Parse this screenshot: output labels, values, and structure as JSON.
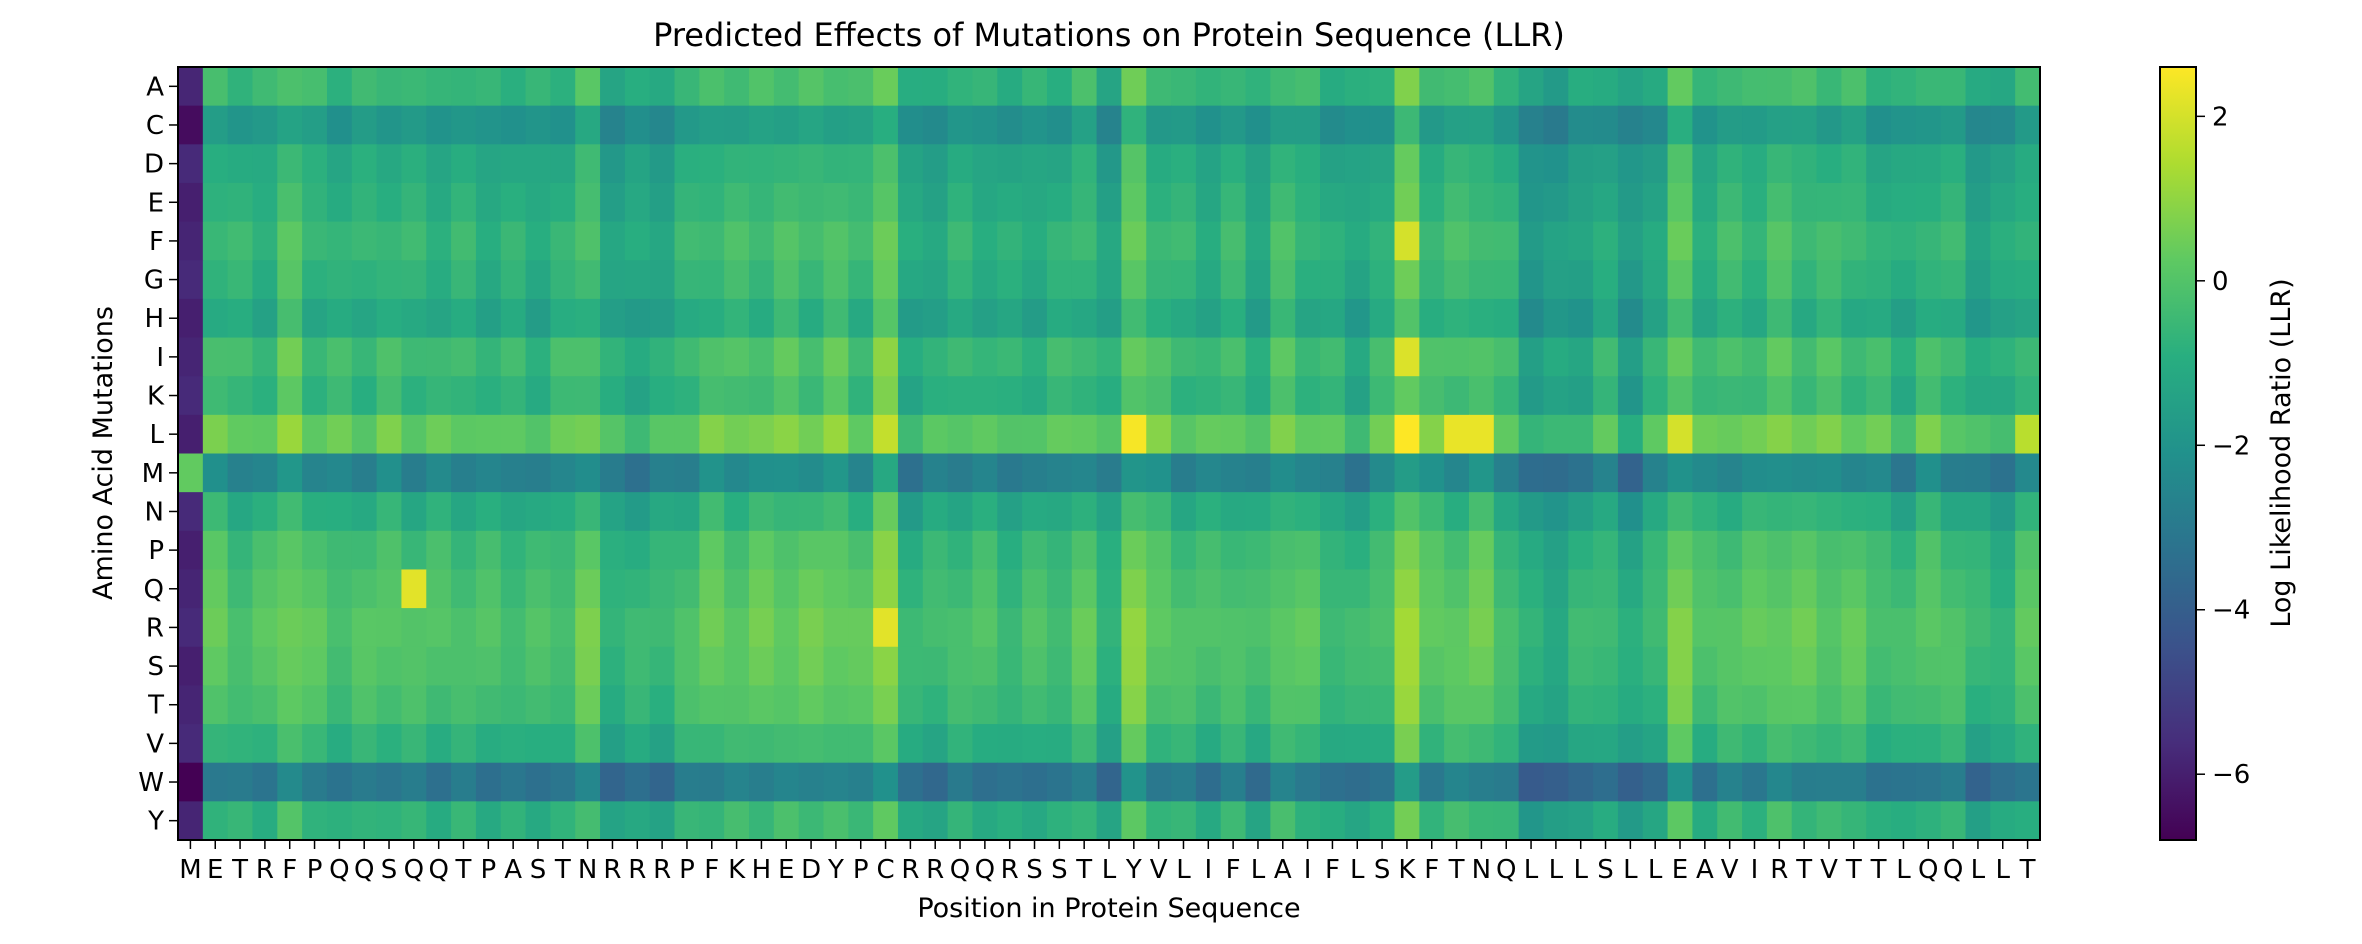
{
  "chart_data": {
    "type": "heatmap",
    "title": "Predicted Effects of Mutations on Protein Sequence (LLR)",
    "xlabel": "Position in Protein Sequence",
    "ylabel": "Amino Acid Mutations",
    "colorbar_label": "Log Likelihood Ratio (LLR)",
    "colormap": "viridis",
    "color_range": [
      -6.8,
      2.6
    ],
    "colorbar_ticks": [
      2,
      0,
      -2,
      -4,
      -6
    ],
    "colorbar_tick_labels": [
      "2",
      "0",
      "−2",
      "−4",
      "−6"
    ],
    "x_categories": [
      "M",
      "E",
      "T",
      "R",
      "F",
      "P",
      "Q",
      "Q",
      "S",
      "Q",
      "Q",
      "T",
      "P",
      "A",
      "S",
      "T",
      "N",
      "R",
      "R",
      "R",
      "P",
      "F",
      "K",
      "H",
      "E",
      "D",
      "Y",
      "P",
      "C",
      "R",
      "R",
      "Q",
      "Q",
      "R",
      "S",
      "S",
      "T",
      "L",
      "Y",
      "V",
      "L",
      "I",
      "F",
      "L",
      "A",
      "I",
      "F",
      "L",
      "S",
      "K",
      "F",
      "T",
      "N",
      "Q",
      "L",
      "L",
      "L",
      "S",
      "L",
      "L",
      "E",
      "A",
      "V",
      "I",
      "R",
      "T",
      "V",
      "T",
      "T",
      "L",
      "Q",
      "Q",
      "L",
      "L",
      "T"
    ],
    "y_categories": [
      "A",
      "C",
      "D",
      "E",
      "F",
      "G",
      "H",
      "I",
      "K",
      "L",
      "M",
      "N",
      "P",
      "Q",
      "R",
      "S",
      "T",
      "V",
      "W",
      "Y"
    ],
    "column_bias": [
      -0.2,
      0.3,
      0.0,
      0.0,
      0.7,
      0.1,
      0.0,
      0.0,
      0.2,
      0.0,
      0.0,
      0.0,
      -0.1,
      -0.1,
      -0.2,
      0.0,
      0.5,
      -0.5,
      -0.5,
      -0.4,
      0.0,
      0.4,
      0.3,
      0.4,
      0.5,
      0.4,
      0.6,
      0.2,
      1.2,
      -0.5,
      -0.3,
      -0.1,
      -0.1,
      -0.3,
      -0.2,
      -0.1,
      0.2,
      -0.5,
      0.9,
      0.3,
      0.0,
      -0.1,
      0.1,
      -0.3,
      0.4,
      0.1,
      -0.2,
      -0.5,
      0.0,
      1.2,
      0.3,
      0.3,
      0.5,
      0.0,
      -0.9,
      -0.9,
      -0.6,
      -0.2,
      -1.0,
      -0.3,
      0.8,
      0.0,
      0.2,
      0.2,
      0.5,
      0.3,
      0.3,
      0.2,
      0.0,
      -0.3,
      0.2,
      0.0,
      -0.5,
      -0.5,
      0.1
    ],
    "row_bias": [
      0.0,
      -1.3,
      -0.5,
      -0.3,
      0.0,
      -0.2,
      -0.6,
      0.2,
      -0.1,
      0.9,
      -2.0,
      -0.4,
      0.2,
      0.4,
      0.6,
      0.5,
      0.3,
      -0.2,
      -2.5,
      -0.2
    ],
    "special_cells": [
      {
        "row": "M",
        "col": 0,
        "value": 0.3
      },
      {
        "row": "W",
        "col": 0,
        "value": -6.8
      },
      {
        "row": "A",
        "col": 0,
        "value": -5.8
      },
      {
        "row": "C",
        "col": 0,
        "value": -6.5
      },
      {
        "row": "L",
        "col": 38,
        "value": 2.5
      },
      {
        "row": "L",
        "col": 49,
        "value": 2.6
      },
      {
        "row": "L",
        "col": 51,
        "value": 2.3
      },
      {
        "row": "L",
        "col": 52,
        "value": 2.3
      },
      {
        "row": "Q",
        "col": 9,
        "value": 2.2
      },
      {
        "row": "I",
        "col": 49,
        "value": 2.1
      },
      {
        "row": "F",
        "col": 49,
        "value": 2.0
      },
      {
        "row": "R",
        "col": 28,
        "value": 2.2
      },
      {
        "row": "L",
        "col": 60,
        "value": 2.0
      },
      {
        "row": "L",
        "col": 74,
        "value": 1.6
      }
    ]
  }
}
